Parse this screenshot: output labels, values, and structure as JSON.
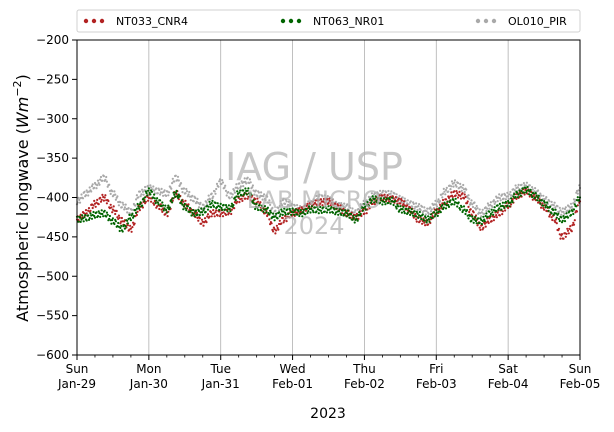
{
  "chart_data": {
    "type": "scatter",
    "ylabel_base": "Atmospheric longwave (",
    "ylabel_unit_main": "Wm",
    "ylabel_unit_exp": "−2",
    "ylabel_close": ")",
    "xlabel": "2023",
    "ylim": [
      -600,
      -200
    ],
    "yticks": [
      -200,
      -250,
      -300,
      -350,
      -400,
      -450,
      -500,
      -550,
      -600
    ],
    "xlim_days": [
      0,
      7
    ],
    "x_ticks": [
      {
        "day": "Sun",
        "date": "Jan-29"
      },
      {
        "day": "Mon",
        "date": "Jan-30"
      },
      {
        "day": "Tue",
        "date": "Jan-31"
      },
      {
        "day": "Wed",
        "date": "Feb-01"
      },
      {
        "day": "Thu",
        "date": "Feb-02"
      },
      {
        "day": "Fri",
        "date": "Feb-03"
      },
      {
        "day": "Sat",
        "date": "Feb-04"
      },
      {
        "day": "Sun",
        "date": "Feb-05"
      }
    ],
    "grid": "vertical",
    "legend_position": "top",
    "watermark": {
      "line1": "IAG / USP",
      "line2": "LAB MICRO",
      "line3": "2024"
    },
    "series": [
      {
        "name": "NT033_CNR4",
        "color": "#b22222",
        "x": [
          "01-29 00:00",
          "01-29 03:00",
          "01-29 06:00",
          "01-29 09:00",
          "01-29 12:00",
          "01-29 15:00",
          "01-29 18:00",
          "01-29 21:00",
          "01-30 00:00",
          "01-30 03:00",
          "01-30 06:00",
          "01-30 09:00",
          "01-30 12:00",
          "01-30 15:00",
          "01-30 18:00",
          "01-30 21:00",
          "01-31 00:00",
          "01-31 03:00",
          "01-31 06:00",
          "01-31 09:00",
          "01-31 12:00",
          "01-31 15:00",
          "01-31 18:00",
          "01-31 21:00",
          "02-01 00:00",
          "02-01 03:00",
          "02-01 06:00",
          "02-01 09:00",
          "02-01 12:00",
          "02-01 15:00",
          "02-01 18:00",
          "02-01 21:00",
          "02-02 00:00",
          "02-02 03:00",
          "02-02 06:00",
          "02-02 09:00",
          "02-02 12:00",
          "02-02 15:00",
          "02-02 18:00",
          "02-02 21:00",
          "02-03 00:00",
          "02-03 03:00",
          "02-03 06:00",
          "02-03 09:00",
          "02-03 12:00",
          "02-03 15:00",
          "02-03 18:00",
          "02-03 21:00",
          "02-04 00:00",
          "02-04 03:00",
          "02-04 06:00",
          "02-04 09:00",
          "02-04 12:00",
          "02-04 15:00",
          "02-04 18:00",
          "02-04 21:00",
          "02-05 00:00"
        ],
        "values": [
          -428,
          -420,
          -408,
          -400,
          -415,
          -430,
          -440,
          -412,
          -400,
          -410,
          -420,
          -395,
          -408,
          -420,
          -432,
          -420,
          -420,
          -418,
          -402,
          -398,
          -405,
          -418,
          -442,
          -428,
          -420,
          -416,
          -410,
          -406,
          -405,
          -412,
          -420,
          -425,
          -418,
          -405,
          -400,
          -402,
          -405,
          -415,
          -428,
          -432,
          -418,
          -405,
          -395,
          -398,
          -420,
          -438,
          -428,
          -420,
          -410,
          -398,
          -392,
          -400,
          -412,
          -425,
          -450,
          -440,
          -405
        ]
      },
      {
        "name": "NT063_NR01",
        "color": "#006400",
        "x": [
          "01-29 00:00",
          "01-29 03:00",
          "01-29 06:00",
          "01-29 09:00",
          "01-29 12:00",
          "01-29 15:00",
          "01-29 18:00",
          "01-29 21:00",
          "01-30 00:00",
          "01-30 03:00",
          "01-30 06:00",
          "01-30 09:00",
          "01-30 12:00",
          "01-30 15:00",
          "01-30 18:00",
          "01-30 21:00",
          "01-31 00:00",
          "01-31 03:00",
          "01-31 06:00",
          "01-31 09:00",
          "01-31 12:00",
          "01-31 15:00",
          "01-31 18:00",
          "01-31 21:00",
          "02-01 00:00",
          "02-01 03:00",
          "02-01 06:00",
          "02-01 09:00",
          "02-01 12:00",
          "02-01 15:00",
          "02-01 18:00",
          "02-01 21:00",
          "02-02 00:00",
          "02-02 03:00",
          "02-02 06:00",
          "02-02 09:00",
          "02-02 12:00",
          "02-02 15:00",
          "02-02 18:00",
          "02-02 21:00",
          "02-03 00:00",
          "02-03 03:00",
          "02-03 06:00",
          "02-03 09:00",
          "02-03 12:00",
          "02-03 15:00",
          "02-03 18:00",
          "02-03 21:00",
          "02-04 00:00",
          "02-04 03:00",
          "02-04 06:00",
          "02-04 09:00",
          "02-04 12:00",
          "02-04 15:00",
          "02-04 18:00",
          "02-04 21:00",
          "02-05 00:00"
        ],
        "values": [
          -428,
          -426,
          -422,
          -420,
          -430,
          -440,
          -425,
          -410,
          -392,
          -405,
          -415,
          -395,
          -412,
          -420,
          -418,
          -408,
          -412,
          -414,
          -395,
          -392,
          -412,
          -415,
          -425,
          -418,
          -418,
          -420,
          -415,
          -416,
          -415,
          -418,
          -420,
          -428,
          -412,
          -402,
          -405,
          -404,
          -415,
          -418,
          -422,
          -428,
          -420,
          -410,
          -405,
          -415,
          -428,
          -430,
          -420,
          -412,
          -408,
          -396,
          -390,
          -398,
          -408,
          -418,
          -428,
          -420,
          -400
        ]
      },
      {
        "name": "OL010_PIR",
        "color": "#a9a9a9",
        "x": [
          "01-29 00:00",
          "01-29 03:00",
          "01-29 06:00",
          "01-29 09:00",
          "01-29 12:00",
          "01-29 15:00",
          "01-29 18:00",
          "01-29 21:00",
          "01-30 00:00",
          "01-30 03:00",
          "01-30 06:00",
          "01-30 09:00",
          "01-30 12:00",
          "01-30 15:00",
          "01-30 18:00",
          "01-30 21:00",
          "01-31 00:00",
          "01-31 03:00",
          "01-31 06:00",
          "01-31 09:00",
          "01-31 12:00",
          "01-31 15:00",
          "01-31 18:00",
          "01-31 21:00",
          "02-01 00:00",
          "02-01 03:00",
          "02-01 06:00",
          "02-01 09:00",
          "02-01 12:00",
          "02-01 15:00",
          "02-01 18:00",
          "02-01 21:00",
          "02-02 00:00",
          "02-02 03:00",
          "02-02 06:00",
          "02-02 09:00",
          "02-02 12:00",
          "02-02 15:00",
          "02-02 18:00",
          "02-02 21:00",
          "02-03 00:00",
          "02-03 03:00",
          "02-03 06:00",
          "02-03 09:00",
          "02-03 12:00",
          "02-03 15:00",
          "02-03 18:00",
          "02-03 21:00",
          "02-04 00:00",
          "02-04 03:00",
          "02-04 06:00",
          "02-04 09:00",
          "02-04 12:00",
          "02-04 15:00",
          "02-04 18:00",
          "02-04 21:00",
          "02-05 00:00"
        ],
        "values": [
          -405,
          -395,
          -385,
          -375,
          -395,
          -410,
          -418,
          -395,
          -388,
          -392,
          -395,
          -375,
          -392,
          -402,
          -412,
          -398,
          -380,
          -398,
          -385,
          -378,
          -395,
          -400,
          -420,
          -405,
          -412,
          -415,
          -408,
          -400,
          -402,
          -410,
          -412,
          -420,
          -408,
          -398,
          -395,
          -396,
          -402,
          -408,
          -412,
          -418,
          -408,
          -392,
          -382,
          -388,
          -408,
          -420,
          -410,
          -400,
          -398,
          -388,
          -385,
          -392,
          -402,
          -410,
          -418,
          -412,
          -388
        ]
      }
    ]
  }
}
